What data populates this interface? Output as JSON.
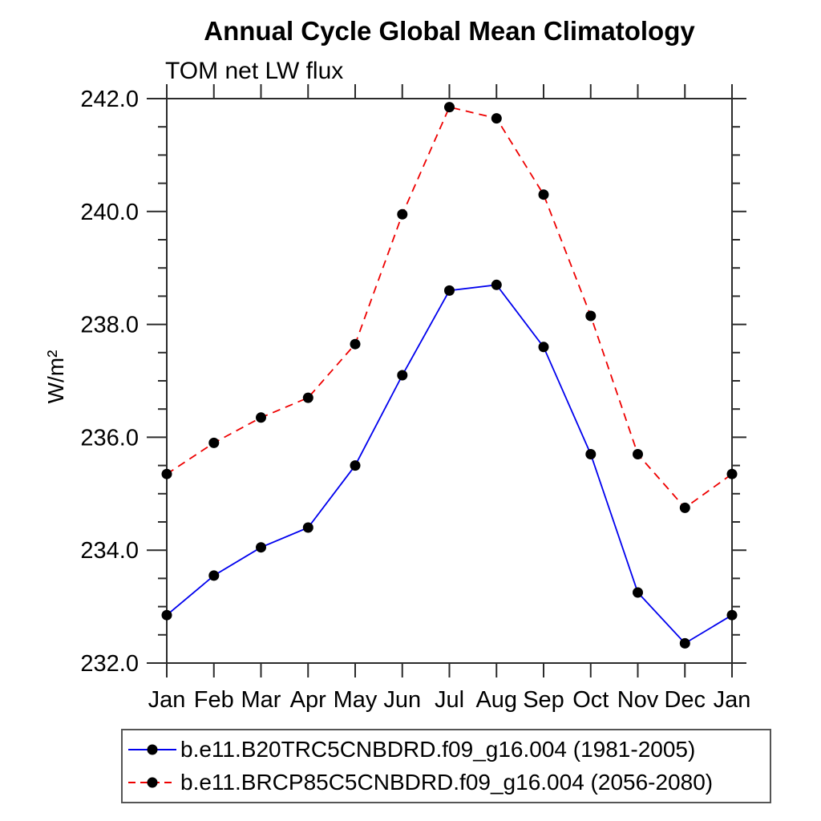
{
  "chart_data": {
    "type": "line",
    "title": "Annual Cycle Global Mean Climatology",
    "subtitle": "TOM net LW flux",
    "xlabel": "",
    "ylabel": "W/m²",
    "categories": [
      "Jan",
      "Feb",
      "Mar",
      "Apr",
      "May",
      "Jun",
      "Jul",
      "Aug",
      "Sep",
      "Oct",
      "Nov",
      "Dec",
      "Jan"
    ],
    "ylim": [
      232.0,
      242.0
    ],
    "ytick_major_interval": 2.0,
    "ytick_minor_interval": 0.5,
    "ytick_labels": [
      "232.0",
      "234.0",
      "236.0",
      "238.0",
      "240.0",
      "242.0"
    ],
    "grid": false,
    "legend_position": "bottom",
    "series": [
      {
        "name": "b.e11.B20TRC5CNBDRD.f09_g16.004 (1981-2005)",
        "line_color": "#0000ee",
        "line_style": "solid",
        "marker": "filled-circle",
        "marker_color": "#000000",
        "values": [
          232.85,
          233.55,
          234.05,
          234.4,
          235.5,
          237.1,
          238.6,
          238.7,
          237.6,
          235.7,
          233.25,
          232.35,
          232.85
        ]
      },
      {
        "name": "b.e11.BRCP85C5CNBDRD.f09_g16.004 (2056-2080)",
        "line_color": "#ee0000",
        "line_style": "dashed",
        "marker": "filled-circle",
        "marker_color": "#000000",
        "values": [
          235.35,
          235.9,
          236.35,
          236.7,
          237.65,
          239.95,
          241.85,
          241.65,
          240.3,
          238.15,
          235.7,
          234.75,
          235.35
        ]
      }
    ]
  },
  "colors": {
    "axis": "#2b2b2b",
    "background": "#ffffff",
    "text": "#000000"
  }
}
